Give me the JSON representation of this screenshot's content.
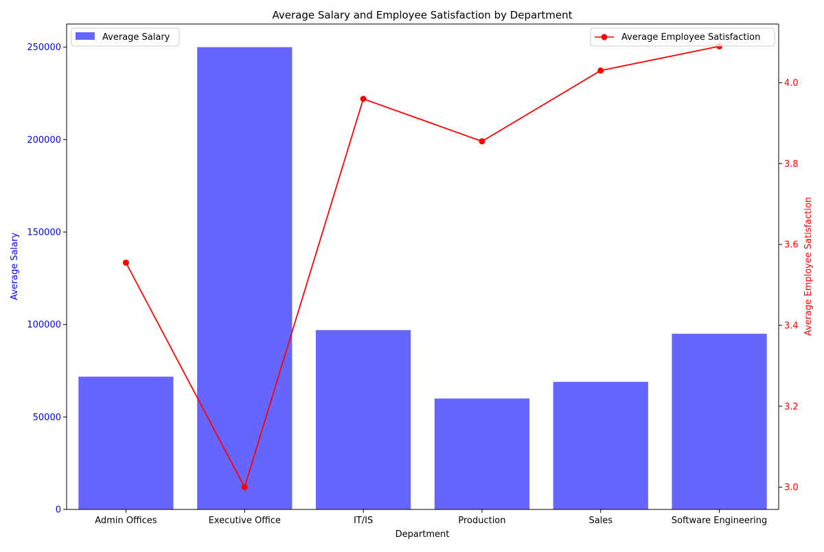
{
  "chart_data": {
    "type": "bar",
    "title": "Average Salary and Employee Satisfaction by Department",
    "xlabel": "Department",
    "ylabel": "Average Salary",
    "y2label": "Average Employee Satisfaction",
    "categories": [
      "Admin Offices",
      "Executive Office",
      "IT/IS",
      "Production",
      "Sales",
      "Software Engineering"
    ],
    "series": [
      {
        "name": "Average Salary",
        "type": "bar",
        "axis": "left",
        "color": "#6666ff",
        "values": [
          71800,
          250000,
          97000,
          60000,
          69000,
          95000
        ]
      },
      {
        "name": "Average Employee Satisfaction",
        "type": "line",
        "axis": "right",
        "color": "#ff0000",
        "values": [
          3.555,
          3.0,
          3.96,
          3.855,
          4.03,
          4.09
        ]
      }
    ],
    "ylim": [
      0,
      262500
    ],
    "y_ticks": [
      0,
      50000,
      100000,
      150000,
      200000,
      250000
    ],
    "y_tick_labels": [
      "0",
      "50000",
      "100000",
      "150000",
      "200000",
      "250000"
    ],
    "y2lim": [
      2.945,
      4.145
    ],
    "y2_ticks": [
      3.0,
      3.2,
      3.4,
      3.6,
      3.8,
      4.0
    ],
    "y2_tick_labels": [
      "3.0",
      "3.2",
      "3.4",
      "3.6",
      "3.8",
      "4.0"
    ],
    "legend": {
      "left_position": "top-left",
      "right_position": "top-right"
    },
    "grid": false
  }
}
